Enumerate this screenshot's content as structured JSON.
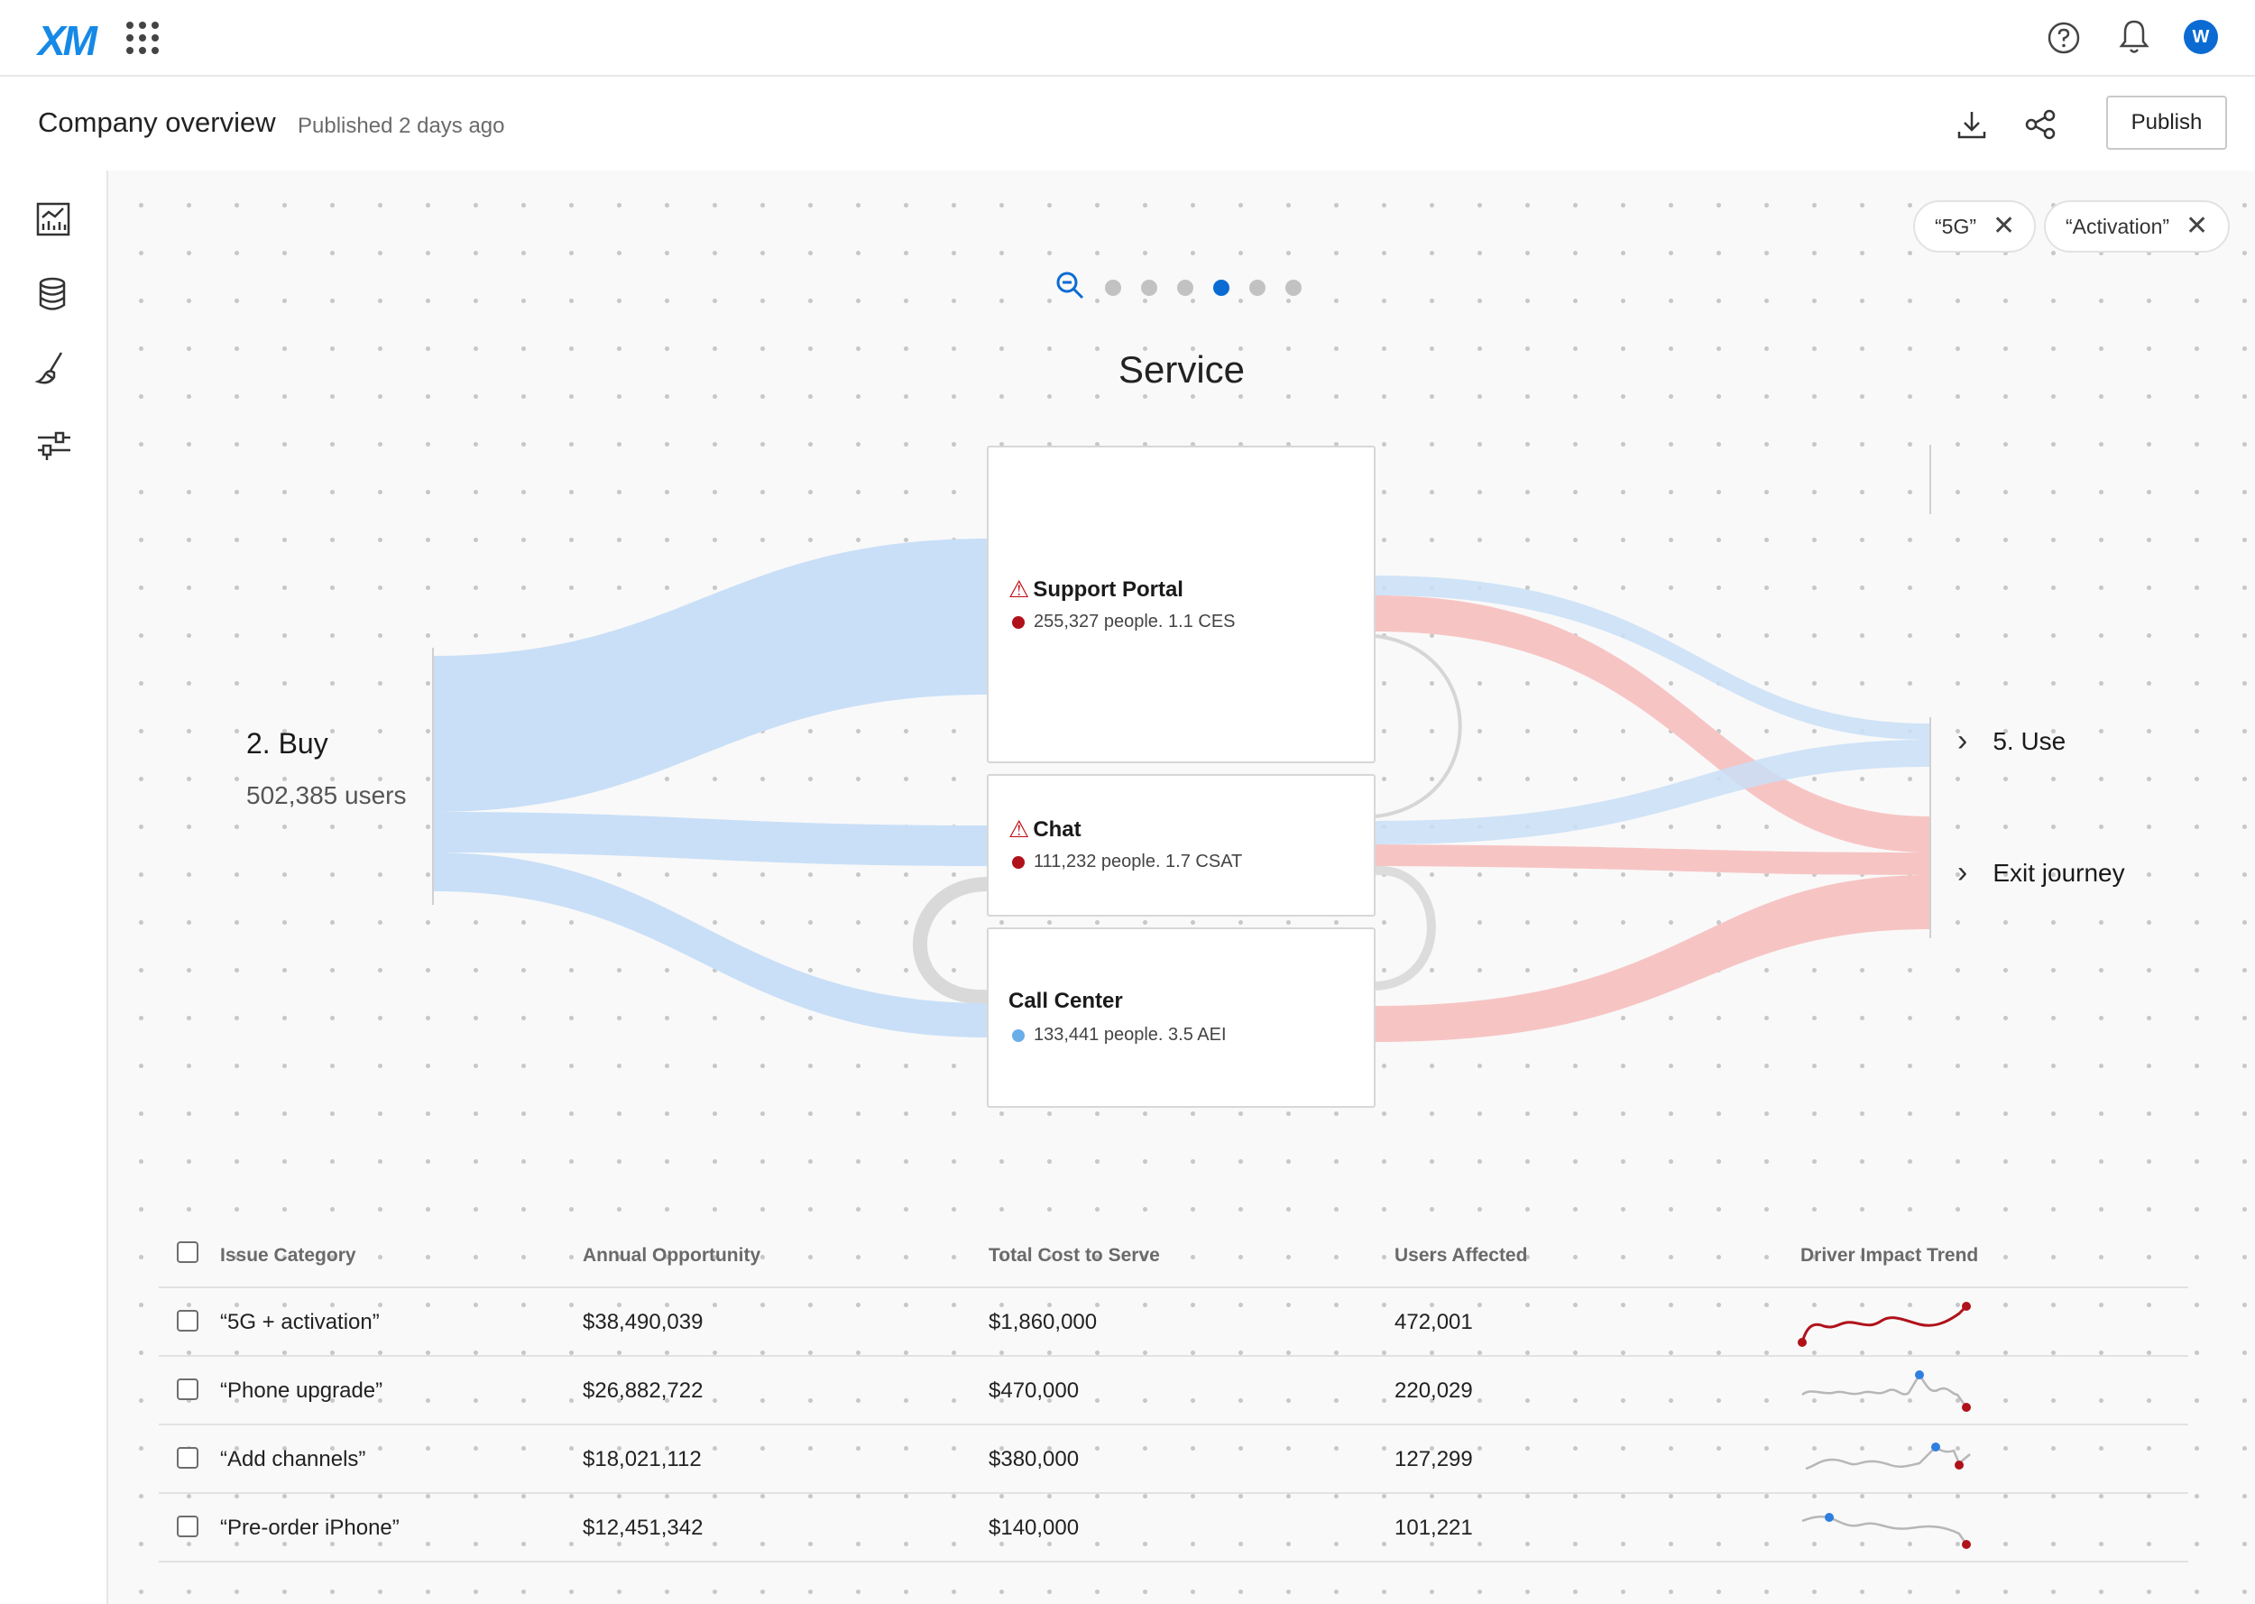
{
  "topbar": {
    "logo": "XM",
    "avatar_initial": "W",
    "icons": [
      "app-grid-icon",
      "help-icon",
      "bell-icon"
    ]
  },
  "header": {
    "title": "Company overview",
    "published": "Published 2 days ago",
    "publish_label": "Publish"
  },
  "sidebar": {
    "items": [
      "dashboard-icon",
      "database-icon",
      "brush-icon",
      "filter-settings-icon"
    ]
  },
  "filters": [
    "“5G”",
    "“Activation”"
  ],
  "pager": {
    "count": 6,
    "active_index": 3
  },
  "journey": {
    "stage_title": "Service",
    "source": {
      "label": "2. Buy",
      "sub": "502,385 users"
    },
    "nodes": [
      {
        "name": "Support Portal",
        "stats": "255,327 people. 1.1 CES",
        "warning": true,
        "status_color": "#b0121a"
      },
      {
        "name": "Chat",
        "stats": "111,232 people. 1.7 CSAT",
        "warning": true,
        "status_color": "#b0121a"
      },
      {
        "name": "Call Center",
        "stats": "133,441 people. 3.5 AEI",
        "warning": false,
        "status_color": "#6aaee8"
      }
    ],
    "targets": [
      {
        "label": "5. Use"
      },
      {
        "label": "Exit journey"
      }
    ],
    "colors": {
      "positive": "#c9dff7",
      "negative": "#f7c4c4"
    }
  },
  "table": {
    "headers": [
      "Issue Category",
      "Annual Opportunity",
      "Total Cost to Serve",
      "Users Affected",
      "Driver Impact Trend"
    ],
    "rows": [
      {
        "category": "“5G + activation”",
        "opportunity": "$38,490,039",
        "cost": "$1,860,000",
        "users": "472,001"
      },
      {
        "category": "“Phone upgrade”",
        "opportunity": "$26,882,722",
        "cost": "$470,000",
        "users": "220,029"
      },
      {
        "category": "“Add channels”",
        "opportunity": "$18,021,112",
        "cost": "$380,000",
        "users": "127,299"
      },
      {
        "category": "“Pre-order iPhone”",
        "opportunity": "$12,451,342",
        "cost": "$140,000",
        "users": "101,221"
      }
    ]
  }
}
